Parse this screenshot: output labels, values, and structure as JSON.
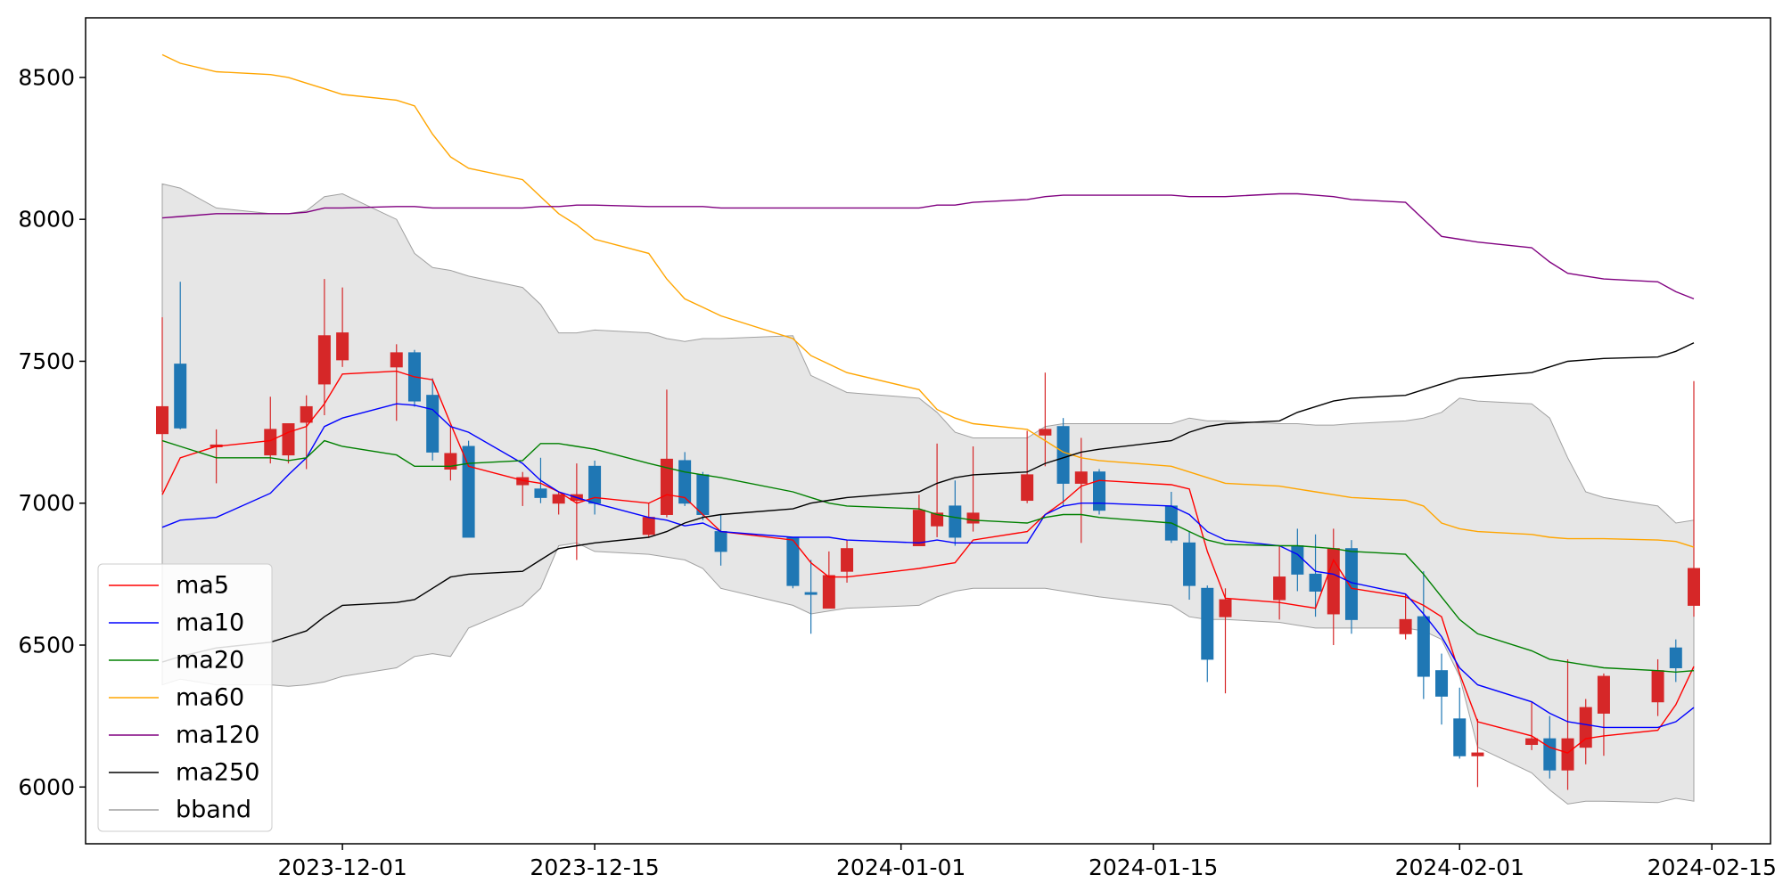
{
  "chart_data": {
    "type": "candlestick",
    "title": "",
    "xlabel": "",
    "ylabel": "",
    "grid": false,
    "legend_position": "lower-left",
    "x_tick_labels": [
      "2023-12-01",
      "2023-12-15",
      "2024-01-01",
      "2024-01-15",
      "2024-02-01",
      "2024-02-15"
    ],
    "y_tick_labels": [
      "6000",
      "6500",
      "7000",
      "7500",
      "8000",
      "8500"
    ],
    "y_ticks": [
      6000,
      6500,
      7000,
      7500,
      8000,
      8500
    ],
    "ylim": [
      5800,
      8710
    ],
    "colors": {
      "up": "#d62728",
      "down": "#1f77b4",
      "band_fill": "#e6e6e6",
      "band_edge": "#a0a0a0"
    },
    "dates": [
      "2023-11-21",
      "2023-11-22",
      "2023-11-24",
      "2023-11-27",
      "2023-11-28",
      "2023-11-29",
      "2023-11-30",
      "2023-12-01",
      "2023-12-04",
      "2023-12-05",
      "2023-12-06",
      "2023-12-07",
      "2023-12-08",
      "2023-12-11",
      "2023-12-12",
      "2023-12-13",
      "2023-12-14",
      "2023-12-15",
      "2023-12-18",
      "2023-12-19",
      "2023-12-20",
      "2023-12-21",
      "2023-12-22",
      "2023-12-26",
      "2023-12-27",
      "2023-12-28",
      "2023-12-29",
      "2024-01-02",
      "2024-01-03",
      "2024-01-04",
      "2024-01-05",
      "2024-01-08",
      "2024-01-09",
      "2024-01-10",
      "2024-01-11",
      "2024-01-12",
      "2024-01-16",
      "2024-01-17",
      "2024-01-18",
      "2024-01-19",
      "2024-01-22",
      "2024-01-23",
      "2024-01-24",
      "2024-01-25",
      "2024-01-26",
      "2024-01-29",
      "2024-01-30",
      "2024-01-31",
      "2024-02-01",
      "2024-02-02",
      "2024-02-05",
      "2024-02-06",
      "2024-02-07",
      "2024-02-08",
      "2024-02-09",
      "2024-02-12",
      "2024-02-13",
      "2024-02-14"
    ],
    "open": [
      7245,
      7490,
      7200,
      7170,
      7170,
      7285,
      7420,
      7505,
      7480,
      7530,
      7380,
      7120,
      7200,
      7065,
      7050,
      7000,
      7010,
      7130,
      6890,
      6960,
      7150,
      7100,
      6900,
      6880,
      6685,
      6630,
      6760,
      6850,
      6920,
      6990,
      6930,
      7010,
      7240,
      7270,
      7070,
      7110,
      6990,
      6860,
      6700,
      6600,
      6660,
      6850,
      6750,
      6610,
      6840,
      6540,
      6600,
      6410,
      6240,
      6110,
      6150,
      6170,
      6060,
      6140,
      6260,
      6300,
      6490,
      6640
    ],
    "close": [
      7340,
      7265,
      7205,
      7260,
      7280,
      7340,
      7590,
      7600,
      7530,
      7360,
      7180,
      7175,
      6880,
      7090,
      7020,
      7030,
      7030,
      7000,
      6950,
      7155,
      7000,
      6960,
      6830,
      6710,
      6680,
      6745,
      6840,
      6975,
      6965,
      6880,
      6965,
      7100,
      7260,
      7070,
      7110,
      6975,
      6870,
      6710,
      6450,
      6660,
      6740,
      6750,
      6690,
      6840,
      6590,
      6590,
      6390,
      6320,
      6110,
      6120,
      6170,
      6060,
      6170,
      6280,
      6390,
      6410,
      6420,
      6770
    ],
    "high": [
      7655,
      7780,
      7260,
      7375,
      7270,
      7380,
      7790,
      7760,
      7560,
      7540,
      7440,
      7270,
      7220,
      7110,
      7160,
      7040,
      7140,
      7150,
      7000,
      7400,
      7180,
      7110,
      6960,
      6880,
      6800,
      6830,
      6870,
      7030,
      7210,
      7080,
      7200,
      7255,
      7460,
      7300,
      7230,
      7120,
      7040,
      6900,
      6710,
      6700,
      6850,
      6910,
      6890,
      6910,
      6870,
      6680,
      6760,
      6470,
      6350,
      6240,
      6300,
      6250,
      6450,
      6310,
      6400,
      6450,
      6520,
      7430
    ],
    "low": [
      7040,
      7260,
      7070,
      7140,
      7140,
      7120,
      7310,
      7480,
      7290,
      7340,
      7150,
      7080,
      6890,
      6990,
      7000,
      6960,
      6800,
      6960,
      6880,
      6950,
      6990,
      6940,
      6780,
      6700,
      6540,
      6630,
      6720,
      6850,
      6880,
      6850,
      6900,
      7000,
      7130,
      6990,
      6860,
      6960,
      6860,
      6660,
      6370,
      6330,
      6590,
      6690,
      6600,
      6500,
      6540,
      6520,
      6310,
      6220,
      6100,
      6000,
      6130,
      6030,
      5990,
      6080,
      6110,
      6250,
      6370,
      6600
    ],
    "series": [
      {
        "name": "ma5",
        "color": "#ff0000",
        "values": [
          7030,
          7160,
          7200,
          7220,
          7250,
          7270,
          7350,
          7455,
          7465,
          7445,
          7435,
          7280,
          7130,
          7080,
          7070,
          7040,
          7000,
          7020,
          7000,
          7030,
          7020,
          6960,
          6900,
          6870,
          6790,
          6740,
          6740,
          6770,
          6780,
          6790,
          6870,
          6900,
          6960,
          7005,
          7060,
          7080,
          7065,
          7050,
          6830,
          6665,
          6650,
          6640,
          6630,
          6800,
          6700,
          6670,
          6640,
          6600,
          6400,
          6230,
          6180,
          6140,
          6120,
          6170,
          6180,
          6200,
          6290,
          6425
        ]
      },
      {
        "name": "ma10",
        "color": "#0000ff",
        "values": [
          6915,
          6940,
          6950,
          7035,
          7100,
          7160,
          7270,
          7300,
          7350,
          7345,
          7330,
          7270,
          7250,
          7140,
          7080,
          7040,
          7020,
          7000,
          6950,
          6940,
          6920,
          6930,
          6900,
          6880,
          6880,
          6880,
          6870,
          6860,
          6870,
          6860,
          6860,
          6860,
          6960,
          6990,
          7000,
          7000,
          6990,
          6960,
          6900,
          6870,
          6850,
          6820,
          6760,
          6750,
          6720,
          6680,
          6610,
          6530,
          6420,
          6360,
          6300,
          6260,
          6230,
          6220,
          6210,
          6210,
          6230,
          6280
        ]
      },
      {
        "name": "ma20",
        "color": "#008000",
        "values": [
          7220,
          7200,
          7160,
          7160,
          7150,
          7160,
          7220,
          7200,
          7170,
          7130,
          7130,
          7130,
          7140,
          7150,
          7210,
          7210,
          7200,
          7190,
          7140,
          7125,
          7110,
          7100,
          7090,
          7040,
          7020,
          7000,
          6990,
          6980,
          6960,
          6950,
          6940,
          6930,
          6950,
          6960,
          6960,
          6950,
          6930,
          6900,
          6870,
          6855,
          6850,
          6850,
          6845,
          6840,
          6830,
          6820,
          6750,
          6670,
          6590,
          6540,
          6480,
          6450,
          6440,
          6430,
          6420,
          6410,
          6405,
          6410
        ]
      },
      {
        "name": "ma60",
        "color": "#ffa500",
        "values": [
          8580,
          8550,
          8520,
          8510,
          8500,
          8480,
          8460,
          8440,
          8420,
          8400,
          8300,
          8220,
          8180,
          8140,
          8080,
          8020,
          7980,
          7930,
          7880,
          7790,
          7720,
          7690,
          7660,
          7580,
          7520,
          7490,
          7460,
          7400,
          7330,
          7300,
          7280,
          7260,
          7220,
          7180,
          7160,
          7150,
          7130,
          7110,
          7090,
          7070,
          7060,
          7050,
          7040,
          7030,
          7020,
          7010,
          6990,
          6930,
          6910,
          6900,
          6890,
          6880,
          6875,
          6875,
          6875,
          6870,
          6865,
          6845
        ]
      },
      {
        "name": "ma120",
        "color": "#800080",
        "values": [
          8005,
          8010,
          8020,
          8020,
          8020,
          8025,
          8040,
          8040,
          8045,
          8045,
          8040,
          8040,
          8040,
          8040,
          8045,
          8045,
          8050,
          8050,
          8045,
          8045,
          8045,
          8045,
          8040,
          8040,
          8040,
          8040,
          8040,
          8040,
          8050,
          8050,
          8060,
          8070,
          8080,
          8085,
          8085,
          8085,
          8085,
          8080,
          8080,
          8080,
          8090,
          8090,
          8085,
          8080,
          8070,
          8060,
          8000,
          7940,
          7930,
          7920,
          7900,
          7850,
          7810,
          7800,
          7790,
          7780,
          7745,
          7720
        ]
      },
      {
        "name": "ma250",
        "color": "#000000",
        "values": [
          6440,
          6460,
          6490,
          6510,
          6530,
          6550,
          6600,
          6640,
          6650,
          6660,
          6700,
          6740,
          6750,
          6760,
          6800,
          6840,
          6850,
          6860,
          6880,
          6900,
          6930,
          6950,
          6960,
          6980,
          7000,
          7010,
          7020,
          7040,
          7070,
          7090,
          7100,
          7110,
          7140,
          7160,
          7180,
          7190,
          7220,
          7250,
          7270,
          7280,
          7290,
          7320,
          7340,
          7360,
          7370,
          7380,
          7400,
          7420,
          7440,
          7445,
          7460,
          7480,
          7500,
          7505,
          7510,
          7515,
          7535,
          7565
        ]
      },
      {
        "name": "bband",
        "color": "#a0a0a0",
        "upper": [
          8125,
          8110,
          8040,
          8020,
          8020,
          8030,
          8080,
          8090,
          8000,
          7880,
          7830,
          7820,
          7800,
          7760,
          7700,
          7600,
          7600,
          7610,
          7600,
          7580,
          7570,
          7580,
          7580,
          7590,
          7450,
          7420,
          7390,
          7370,
          7320,
          7250,
          7230,
          7230,
          7270,
          7280,
          7280,
          7280,
          7280,
          7300,
          7290,
          7290,
          7280,
          7280,
          7275,
          7275,
          7280,
          7290,
          7300,
          7320,
          7370,
          7360,
          7350,
          7300,
          7160,
          7040,
          7020,
          6990,
          6930,
          6940
        ],
        "lower": [
          6360,
          6380,
          6360,
          6360,
          6355,
          6360,
          6370,
          6390,
          6420,
          6460,
          6470,
          6460,
          6560,
          6640,
          6700,
          6850,
          6860,
          6830,
          6820,
          6810,
          6800,
          6770,
          6700,
          6640,
          6610,
          6620,
          6630,
          6640,
          6670,
          6690,
          6700,
          6700,
          6700,
          6690,
          6680,
          6670,
          6640,
          6600,
          6590,
          6590,
          6580,
          6570,
          6560,
          6560,
          6560,
          6560,
          6550,
          6520,
          6390,
          6140,
          6050,
          5990,
          5940,
          5950,
          5950,
          5945,
          5960,
          5950
        ]
      }
    ]
  }
}
